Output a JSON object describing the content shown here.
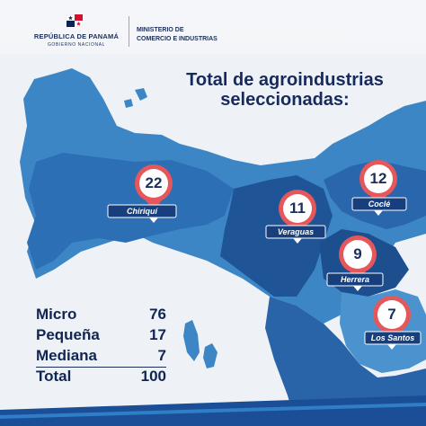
{
  "header": {
    "gov_name": "REPÚBLICA DE PANAMÁ",
    "gov_sub": "GOBIERNO NACIONAL",
    "ministry_line1": "MINISTERIO DE",
    "ministry_line2": "COMERCIO E INDUSTRIAS"
  },
  "title": {
    "line1": "Total de agroindustrias",
    "line2": "seleccionadas:"
  },
  "provinces": [
    {
      "id": "chiriqui",
      "name": "Chiriquí",
      "count": "22"
    },
    {
      "id": "veraguas",
      "name": "Veraguas",
      "count": "11"
    },
    {
      "id": "cocle",
      "name": "Coclé",
      "count": "12"
    },
    {
      "id": "herrera",
      "name": "Herrera",
      "count": "9"
    },
    {
      "id": "los-santos",
      "name": "Los Santos",
      "count": "7"
    }
  ],
  "summary": [
    {
      "label": "Micro",
      "value": "76"
    },
    {
      "label": "Pequeña",
      "value": "17"
    },
    {
      "label": "Mediana",
      "value": "7"
    },
    {
      "label": "Total",
      "value": "100"
    }
  ],
  "colors": {
    "navy": "#172a5e",
    "pin_red": "#e5575a",
    "map_light": "#3d86c6",
    "map_dark": "#1f5597",
    "label_bg": "#173f7e"
  }
}
